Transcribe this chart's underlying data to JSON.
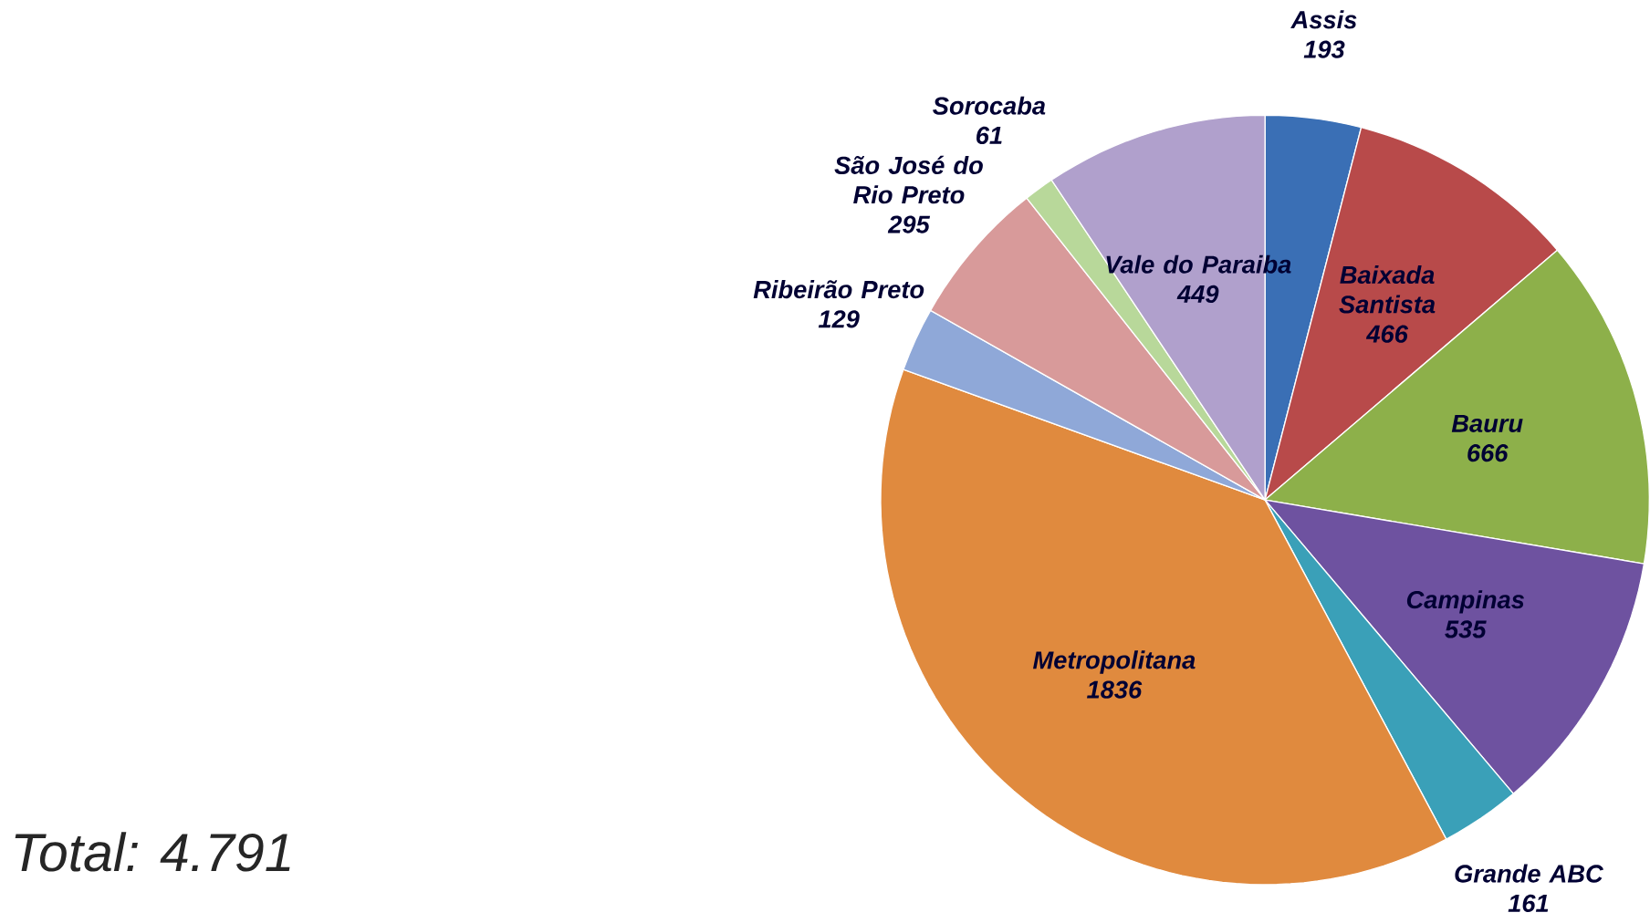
{
  "chart_data": {
    "type": "pie",
    "categories": [
      "Assis",
      "Baixada Santista",
      "Bauru",
      "Campinas",
      "Grande ABC",
      "Metropolitana",
      "Ribeirão Preto",
      "São José do Rio Preto",
      "Sorocaba",
      "Vale do Paraiba"
    ],
    "values": [
      193,
      466,
      666,
      535,
      161,
      1836,
      129,
      295,
      61,
      449
    ],
    "colors": [
      "#3a6fb5",
      "#b84a4a",
      "#8db04a",
      "#6e52a0",
      "#3aa0b8",
      "#e08a3e",
      "#8fa8d8",
      "#d89a9a",
      "#b8d89a",
      "#b0a0cc"
    ],
    "data_labels": true,
    "annotations": [
      "Total: 4.791"
    ]
  }
}
